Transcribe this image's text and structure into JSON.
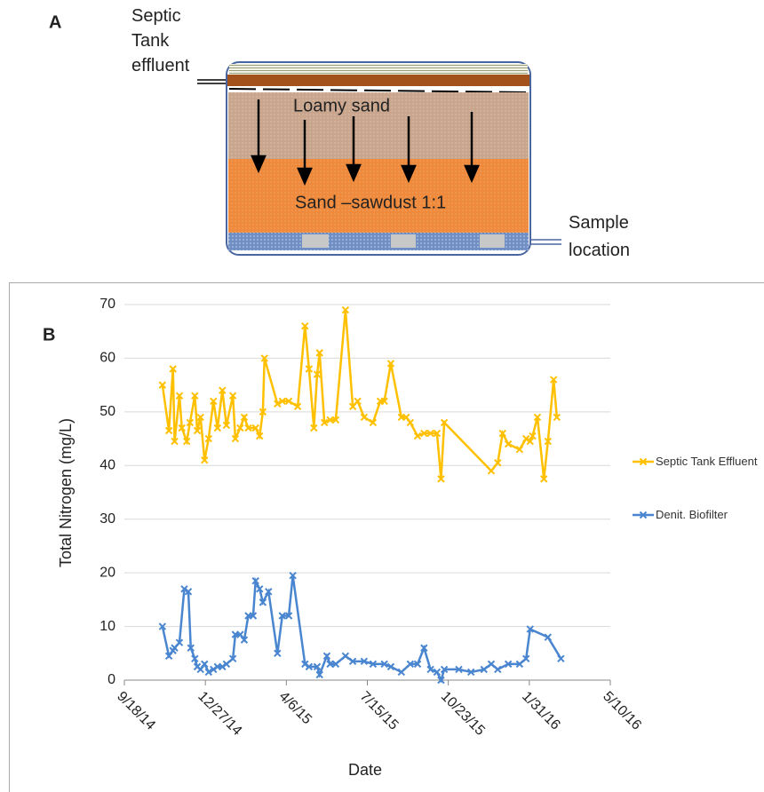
{
  "diagram": {
    "panel_label": "A",
    "inlet_label": "Septic Tank effluent",
    "layer_top": "Loamy sand",
    "layer_bottom": "Sand –sawdust 1:1",
    "outlet_label": "Sample location"
  },
  "panel_label": "B",
  "chart_data": {
    "type": "line",
    "x_label": "Date",
    "y_label": "Total Nitrogen (mg/L)",
    "xlim": [
      "2014-09-18",
      "2016-05-10"
    ],
    "xticks": [
      {
        "value": "2014-09-18",
        "label": "9/18/14"
      },
      {
        "value": "2014-12-27",
        "label": "12/27/14"
      },
      {
        "value": "2015-04-06",
        "label": "4/6/15"
      },
      {
        "value": "2015-07-15",
        "label": "7/15/15"
      },
      {
        "value": "2015-10-23",
        "label": "10/23/15"
      },
      {
        "value": "2016-01-31",
        "label": "1/31/16"
      },
      {
        "value": "2016-05-10",
        "label": "5/10/16"
      }
    ],
    "ylim": [
      0,
      70
    ],
    "yticks": [
      0,
      10,
      20,
      30,
      40,
      50,
      60,
      70
    ],
    "grid": true,
    "legend": "right",
    "series": [
      {
        "name": "Septic Tank Effluent",
        "color": "#ffc000",
        "x": [
          "2014-11-04",
          "2014-11-12",
          "2014-11-17",
          "2014-11-19",
          "2014-11-25",
          "2014-11-28",
          "2014-12-04",
          "2014-12-08",
          "2014-12-14",
          "2014-12-17",
          "2014-12-21",
          "2014-12-26",
          "2014-12-31",
          "2015-01-06",
          "2015-01-11",
          "2015-01-17",
          "2015-01-22",
          "2015-01-30",
          "2015-02-02",
          "2015-02-08",
          "2015-02-13",
          "2015-02-18",
          "2015-02-27",
          "2015-03-04",
          "2015-03-08",
          "2015-03-10",
          "2015-03-26",
          "2015-04-01",
          "2015-04-09",
          "2015-04-20",
          "2015-04-29",
          "2015-05-04",
          "2015-05-10",
          "2015-05-14",
          "2015-05-17",
          "2015-05-23",
          "2015-05-30",
          "2015-06-06",
          "2015-06-18",
          "2015-06-27",
          "2015-07-03",
          "2015-07-11",
          "2015-07-22",
          "2015-07-31",
          "2015-08-05",
          "2015-08-13",
          "2015-08-26",
          "2015-09-01",
          "2015-09-06",
          "2015-09-15",
          "2015-09-23",
          "2015-10-01",
          "2015-10-09",
          "2015-10-14",
          "2015-10-18",
          "2015-12-15",
          "2015-12-23",
          "2015-12-29",
          "2016-01-05",
          "2016-01-19",
          "2016-01-27",
          "2016-02-01",
          "2016-02-04",
          "2016-02-10",
          "2016-02-18",
          "2016-02-23",
          "2016-03-01",
          "2016-03-05"
        ],
        "values": [
          55,
          46.5,
          58,
          44.5,
          53,
          47,
          44.5,
          48,
          53,
          46.5,
          49,
          41,
          45,
          52,
          47,
          54,
          47.5,
          53,
          45,
          47,
          49,
          47,
          47,
          45.5,
          50,
          60,
          51.5,
          52,
          52,
          51,
          66,
          58,
          47,
          57,
          61,
          48,
          48.5,
          48.5,
          69,
          51,
          52,
          49,
          48,
          52,
          52,
          59,
          49,
          49,
          48,
          45.5,
          46,
          46,
          46,
          37.5,
          48,
          39,
          40.5,
          46,
          44,
          43,
          45,
          44.5,
          45.5,
          49,
          37.5,
          44.5,
          56,
          49
        ]
      },
      {
        "name": "Denit. Biofilter",
        "color": "#4a86d0",
        "x": [
          "2014-11-04",
          "2014-11-12",
          "2014-11-17",
          "2014-11-19",
          "2014-11-25",
          "2014-12-01",
          "2014-12-06",
          "2014-12-09",
          "2014-12-14",
          "2014-12-17",
          "2014-12-21",
          "2014-12-26",
          "2014-12-31",
          "2015-01-06",
          "2015-01-11",
          "2015-01-17",
          "2015-01-22",
          "2015-01-30",
          "2015-02-02",
          "2015-02-08",
          "2015-02-13",
          "2015-02-18",
          "2015-02-24",
          "2015-02-27",
          "2015-03-04",
          "2015-03-08",
          "2015-03-15",
          "2015-03-26",
          "2015-04-01",
          "2015-04-09",
          "2015-04-14",
          "2015-04-29",
          "2015-05-04",
          "2015-05-14",
          "2015-05-17",
          "2015-05-26",
          "2015-05-30",
          "2015-06-06",
          "2015-06-18",
          "2015-06-27",
          "2015-07-11",
          "2015-07-22",
          "2015-08-05",
          "2015-08-13",
          "2015-08-26",
          "2015-09-06",
          "2015-09-15",
          "2015-09-23",
          "2015-10-01",
          "2015-10-09",
          "2015-10-14",
          "2015-10-18",
          "2015-11-05",
          "2015-11-20",
          "2015-12-06",
          "2015-12-15",
          "2015-12-23",
          "2016-01-05",
          "2016-01-19",
          "2016-01-27",
          "2016-02-01",
          "2016-02-23",
          "2016-03-10"
        ],
        "values": [
          10,
          4.5,
          5.5,
          6,
          7,
          17,
          16.5,
          6,
          4,
          2.5,
          2,
          3,
          1.5,
          2,
          2.5,
          2.5,
          3,
          4,
          8.5,
          8.5,
          7.5,
          12,
          12,
          18.5,
          17,
          14.5,
          16.5,
          5,
          12,
          12,
          19.5,
          3,
          2.5,
          2.5,
          1,
          4.5,
          3,
          3,
          4.5,
          3.5,
          3.5,
          3,
          3,
          2.5,
          1.5,
          3,
          3,
          6,
          2,
          1.5,
          0,
          2,
          2,
          1.5,
          2,
          3,
          2,
          3,
          3,
          4,
          9.5,
          8,
          4
        ]
      }
    ]
  }
}
